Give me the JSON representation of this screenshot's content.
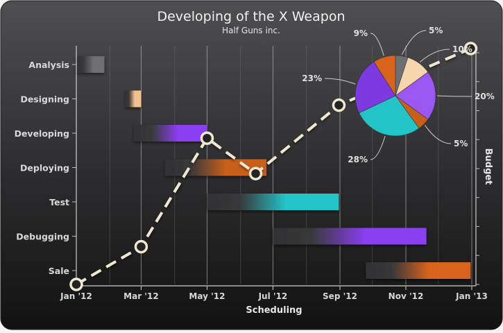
{
  "chart_data": {
    "title": "Developing of the X Weapon",
    "subtitle": "Half Guns inc.",
    "x_axis": {
      "label": "Scheduling",
      "ticks": [
        "Jan '12",
        "Mar '12",
        "May '12",
        "Jul '12",
        "Sep '12",
        "Nov '12",
        "Jan '13"
      ],
      "range": [
        "2012-01-01",
        "2013-01-01"
      ]
    },
    "y2_axis": {
      "label": "Budget"
    },
    "gantt": {
      "type": "bar",
      "tasks": [
        {
          "name": "Analysis",
          "start": "2012-01-01",
          "end": "2012-01-27",
          "color": "#6f6f73"
        },
        {
          "name": "Designing",
          "start": "2012-02-15",
          "end": "2012-03-01",
          "color": "#f2c08f"
        },
        {
          "name": "Developing",
          "start": "2012-02-23",
          "end": "2012-05-01",
          "color": "#8a3ff0"
        },
        {
          "name": "Deploying",
          "start": "2012-03-23",
          "end": "2012-06-25",
          "color": "#c8601a"
        },
        {
          "name": "Test",
          "start": "2012-05-01",
          "end": "2012-08-31",
          "color": "#22c4c8"
        },
        {
          "name": "Debugging",
          "start": "2012-07-01",
          "end": "2012-11-20",
          "color": "#8a3ff0"
        },
        {
          "name": "Sale",
          "start": "2012-09-25",
          "end": "2012-12-31",
          "color": "#d8631a"
        }
      ]
    },
    "budget_line": {
      "type": "line",
      "style": "dashed",
      "color": "#efe9d2",
      "points": [
        {
          "x": "2012-01-01",
          "y": 0.0
        },
        {
          "x": "2012-03-01",
          "y": 0.16
        },
        {
          "x": "2012-05-01",
          "y": 0.62
        },
        {
          "x": "2012-06-15",
          "y": 0.47
        },
        {
          "x": "2012-08-31",
          "y": 0.76
        },
        {
          "x": "2012-12-31",
          "y": 1.0
        }
      ]
    },
    "pie": {
      "type": "pie",
      "slices": [
        {
          "label": "5%",
          "value": 5,
          "color": "#6f6f73"
        },
        {
          "label": "10%",
          "value": 10,
          "color": "#f6d6ac"
        },
        {
          "label": "20%",
          "value": 20,
          "color": "#9a57f2"
        },
        {
          "label": "5%",
          "value": 5,
          "color": "#c8601a"
        },
        {
          "label": "28%",
          "value": 28,
          "color": "#22c4c8"
        },
        {
          "label": "23%",
          "value": 23,
          "color": "#7c3ae0"
        },
        {
          "label": "9%",
          "value": 9,
          "color": "#d8631a"
        }
      ]
    }
  }
}
